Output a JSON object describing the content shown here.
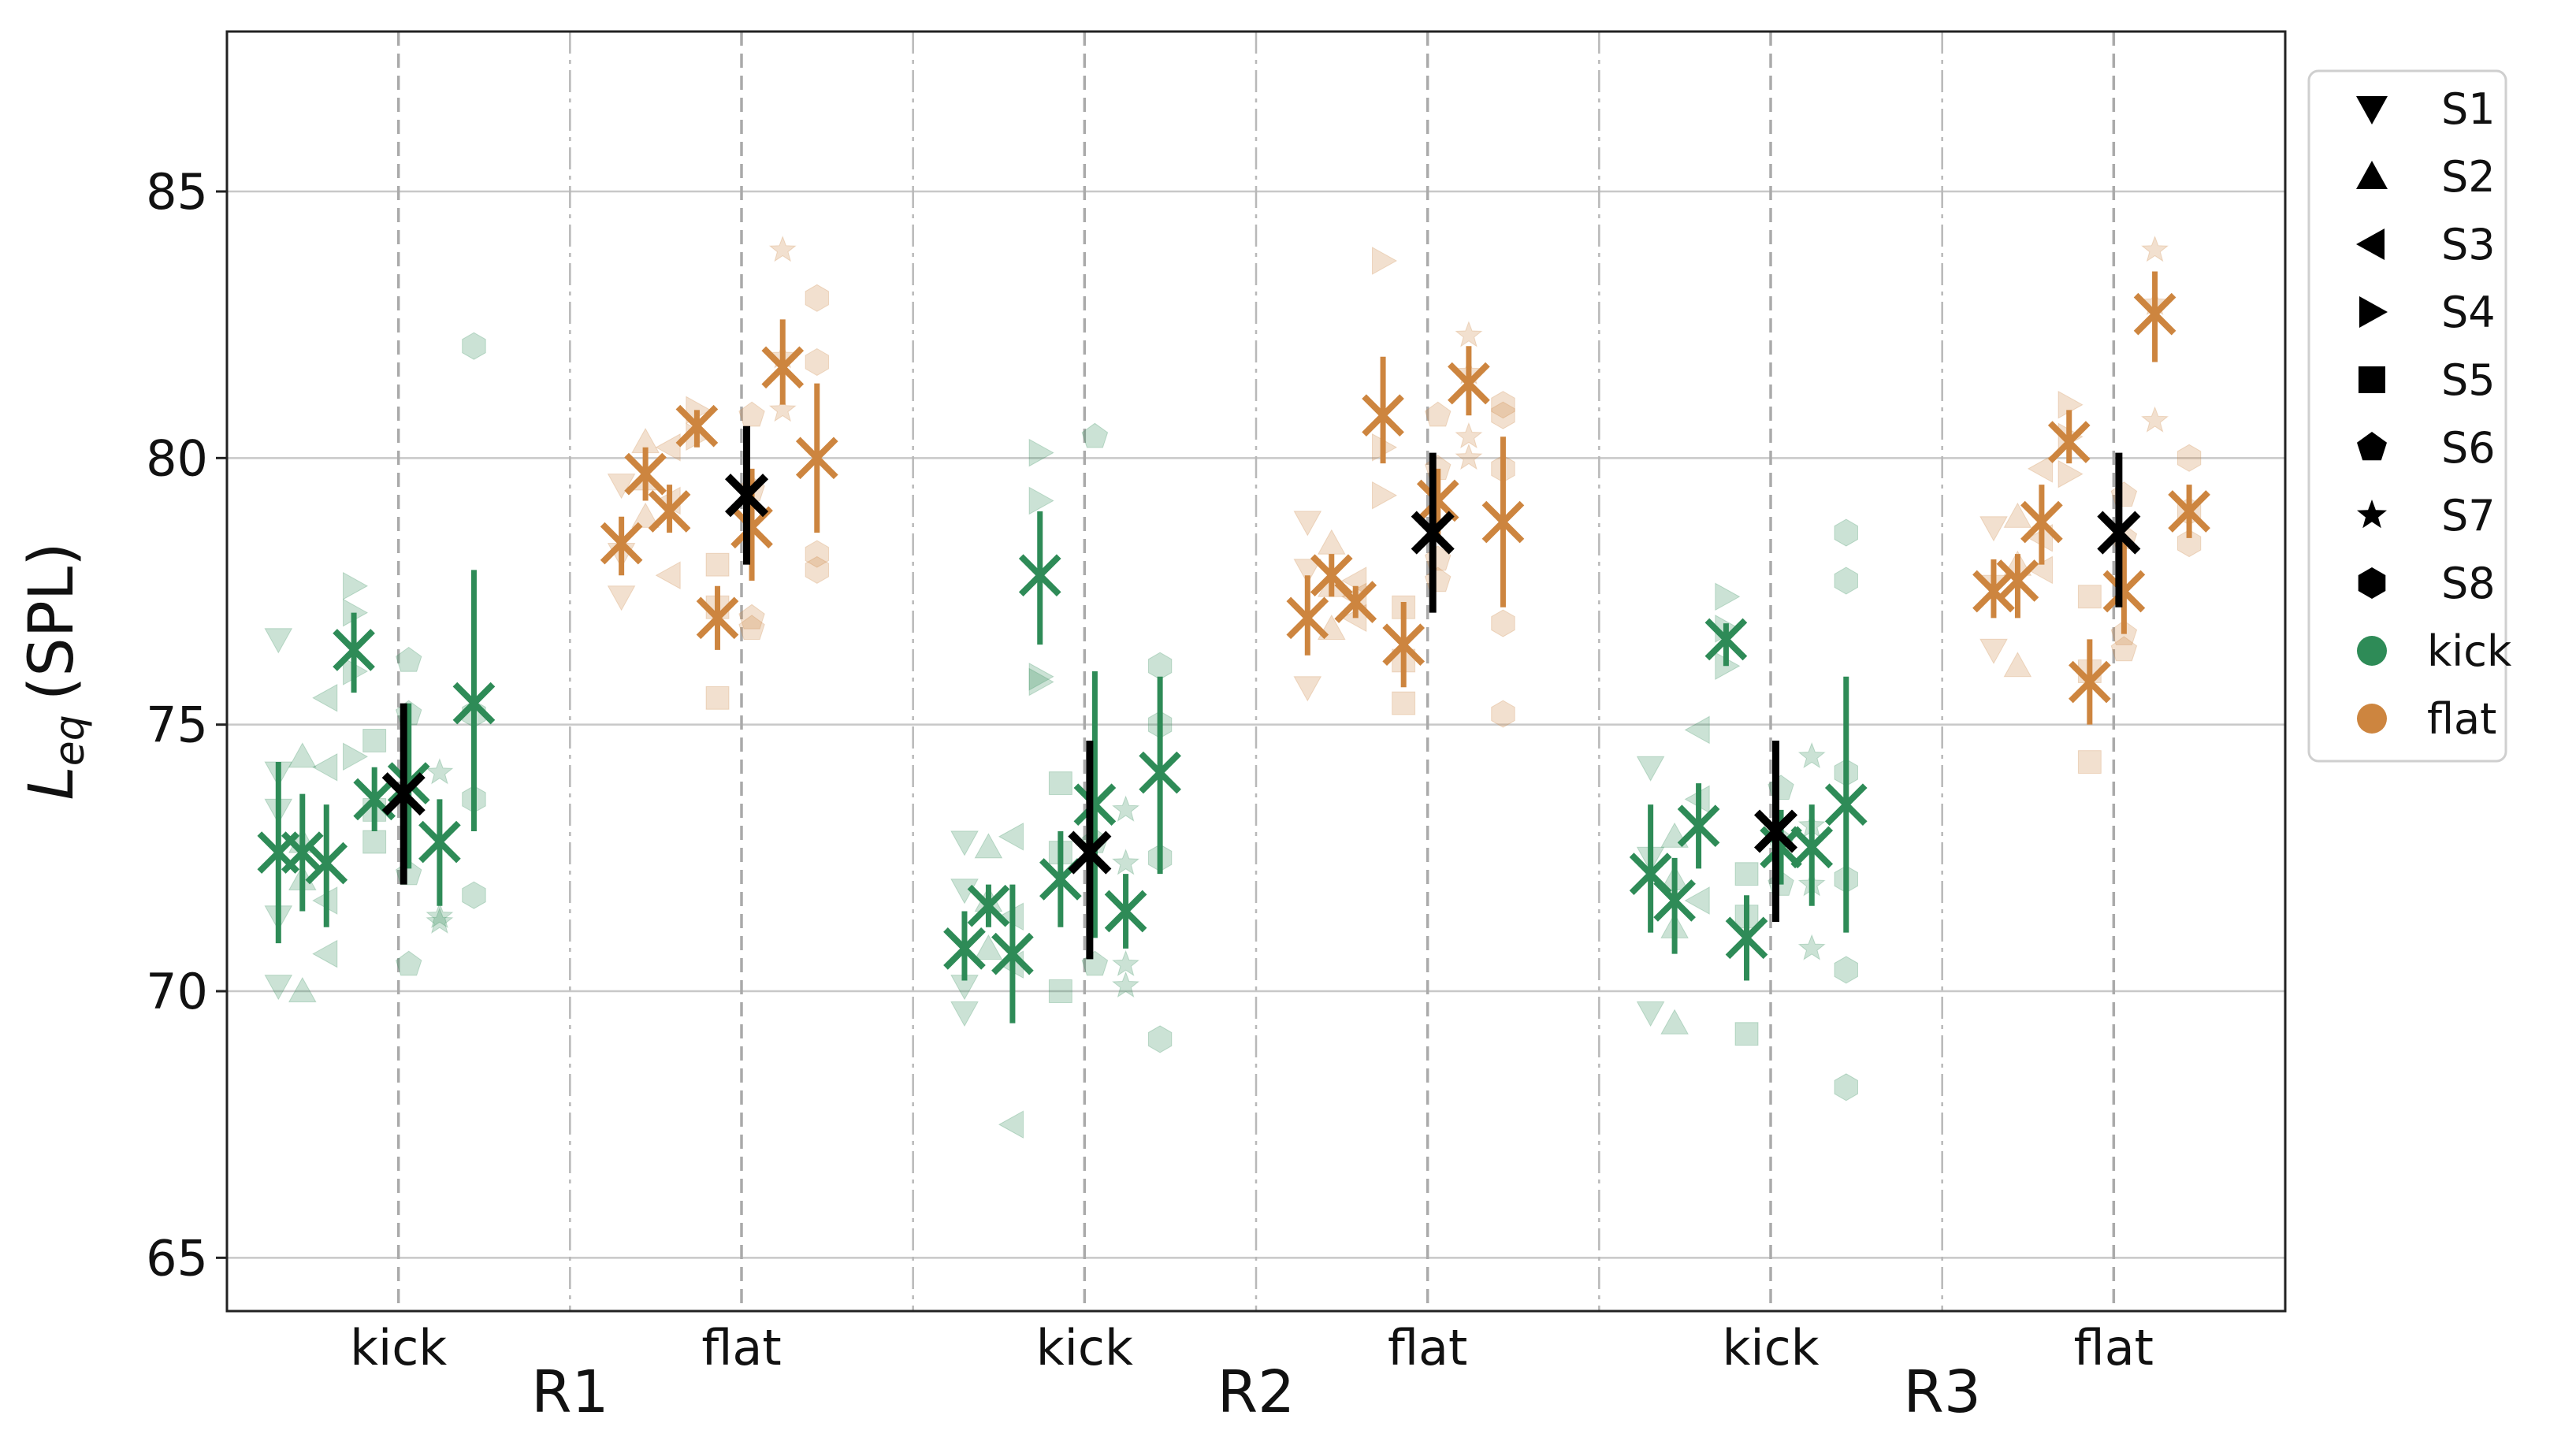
{
  "chart_data": {
    "type": "scatter",
    "ylabel_symbol": "L",
    "ylabel_subscript": "eq",
    "ylabel_unit": "(SPL)",
    "ylim": [
      64,
      88
    ],
    "yticks": [
      65,
      70,
      75,
      80,
      85
    ],
    "grid": true,
    "groups": [
      "R1",
      "R2",
      "R3"
    ],
    "conditions": [
      "kick",
      "flat"
    ],
    "colors": {
      "kick": "#2e8b57",
      "flat": "#cd853f",
      "overall": "#000000"
    },
    "legend": {
      "placement": "right",
      "subjects": [
        {
          "label": "S1",
          "marker": "triangle-down"
        },
        {
          "label": "S2",
          "marker": "triangle-up"
        },
        {
          "label": "S3",
          "marker": "triangle-left"
        },
        {
          "label": "S4",
          "marker": "triangle-right"
        },
        {
          "label": "S5",
          "marker": "square"
        },
        {
          "label": "S6",
          "marker": "pentagon"
        },
        {
          "label": "S7",
          "marker": "star"
        },
        {
          "label": "S8",
          "marker": "hexagon"
        }
      ],
      "conditions": [
        {
          "label": "kick",
          "color": "#2e8b57"
        },
        {
          "label": "flat",
          "color": "#cd853f"
        }
      ]
    },
    "panels": [
      {
        "group": "R1",
        "condition": "kick",
        "overall": {
          "mean": 73.7,
          "lo": 72.0,
          "hi": 75.4
        },
        "subjects": [
          {
            "mean": 72.6,
            "lo": 70.9,
            "hi": 74.3,
            "raw": [
              76.6,
              74.1,
              73.4,
              71.4,
              70.1
            ]
          },
          {
            "mean": 72.6,
            "lo": 71.5,
            "hi": 73.7,
            "raw": [
              74.4,
              72.8,
              72.1,
              70.0
            ]
          },
          {
            "mean": 72.4,
            "lo": 71.2,
            "hi": 73.5,
            "raw": [
              75.5,
              74.2,
              71.7,
              70.7
            ]
          },
          {
            "mean": 76.4,
            "lo": 75.6,
            "hi": 77.1,
            "raw": [
              77.6,
              77.1,
              76.0,
              74.4
            ]
          },
          {
            "mean": 73.6,
            "lo": 73.0,
            "hi": 74.2,
            "raw": [
              74.7,
              73.4,
              72.8
            ]
          },
          {
            "mean": 73.9,
            "lo": 72.3,
            "hi": 75.4,
            "raw": [
              76.2,
              75.2,
              72.2,
              70.5
            ]
          },
          {
            "mean": 72.8,
            "lo": 71.6,
            "hi": 73.6,
            "raw": [
              74.1,
              71.3,
              71.4
            ]
          },
          {
            "mean": 75.4,
            "lo": 73.0,
            "hi": 77.9,
            "raw": [
              82.1,
              75.2,
              73.6,
              71.8
            ]
          }
        ]
      },
      {
        "group": "R1",
        "condition": "flat",
        "overall": {
          "mean": 79.3,
          "lo": 78.0,
          "hi": 80.6
        },
        "subjects": [
          {
            "mean": 78.4,
            "lo": 77.8,
            "hi": 78.9,
            "raw": [
              79.5,
              78.2,
              77.4
            ]
          },
          {
            "mean": 79.7,
            "lo": 79.2,
            "hi": 80.2,
            "raw": [
              80.3,
              79.6,
              78.9
            ]
          },
          {
            "mean": 79.0,
            "lo": 78.6,
            "hi": 79.5,
            "raw": [
              80.2,
              79.2,
              77.8
            ]
          },
          {
            "mean": 80.6,
            "lo": 80.2,
            "hi": 80.9,
            "raw": [
              80.9,
              80.4
            ]
          },
          {
            "mean": 77.0,
            "lo": 76.4,
            "hi": 77.6,
            "raw": [
              78.0,
              77.2,
              75.5
            ]
          },
          {
            "mean": 78.7,
            "lo": 77.7,
            "hi": 79.8,
            "raw": [
              80.8,
              79.4,
              77.0,
              76.8
            ]
          },
          {
            "mean": 81.7,
            "lo": 81.0,
            "hi": 82.6,
            "raw": [
              83.9,
              81.9,
              80.9
            ]
          },
          {
            "mean": 80.0,
            "lo": 78.6,
            "hi": 81.4,
            "raw": [
              83.0,
              81.8,
              78.2,
              77.9
            ]
          }
        ]
      },
      {
        "group": "R2",
        "condition": "kick",
        "overall": {
          "mean": 72.6,
          "lo": 70.6,
          "hi": 74.7
        },
        "subjects": [
          {
            "mean": 70.8,
            "lo": 70.2,
            "hi": 71.5,
            "raw": [
              72.8,
              71.9,
              70.1,
              69.6
            ]
          },
          {
            "mean": 71.6,
            "lo": 71.2,
            "hi": 72.0,
            "raw": [
              72.7,
              71.7,
              70.8
            ]
          },
          {
            "mean": 70.7,
            "lo": 69.4,
            "hi": 72.0,
            "raw": [
              72.9,
              71.4,
              70.5,
              67.5
            ]
          },
          {
            "mean": 77.8,
            "lo": 76.5,
            "hi": 79.0,
            "raw": [
              80.1,
              79.2,
              75.9,
              75.8
            ]
          },
          {
            "mean": 72.1,
            "lo": 71.2,
            "hi": 73.0,
            "raw": [
              73.9,
              72.6,
              70.0
            ]
          },
          {
            "mean": 73.5,
            "lo": 71.0,
            "hi": 76.0,
            "raw": [
              80.4,
              72.8,
              70.5
            ]
          },
          {
            "mean": 71.5,
            "lo": 70.8,
            "hi": 72.2,
            "raw": [
              73.4,
              72.4,
              70.5,
              70.1
            ]
          },
          {
            "mean": 74.1,
            "lo": 72.2,
            "hi": 75.9,
            "raw": [
              76.1,
              75.0,
              72.5,
              69.1
            ]
          }
        ]
      },
      {
        "group": "R2",
        "condition": "flat",
        "overall": {
          "mean": 78.6,
          "lo": 77.1,
          "hi": 80.1
        },
        "subjects": [
          {
            "mean": 77.0,
            "lo": 76.3,
            "hi": 77.8,
            "raw": [
              78.8,
              77.9,
              75.7
            ]
          },
          {
            "mean": 77.8,
            "lo": 77.4,
            "hi": 78.2,
            "raw": [
              78.4,
              77.6,
              76.8
            ]
          },
          {
            "mean": 77.3,
            "lo": 77.0,
            "hi": 77.6,
            "raw": [
              77.7,
              77.4,
              77.0
            ]
          },
          {
            "mean": 80.8,
            "lo": 79.9,
            "hi": 81.9,
            "raw": [
              83.7,
              80.2,
              79.3
            ]
          },
          {
            "mean": 76.5,
            "lo": 75.7,
            "hi": 77.3,
            "raw": [
              77.2,
              76.2,
              75.4
            ]
          },
          {
            "mean": 79.2,
            "lo": 78.5,
            "hi": 79.8,
            "raw": [
              80.8,
              79.8,
              78.1,
              77.7
            ]
          },
          {
            "mean": 81.4,
            "lo": 80.8,
            "hi": 82.1,
            "raw": [
              82.3,
              81.6,
              80.4,
              80.0
            ]
          },
          {
            "mean": 78.8,
            "lo": 77.2,
            "hi": 80.4,
            "raw": [
              81.0,
              80.8,
              79.8,
              76.9,
              75.2
            ]
          }
        ]
      },
      {
        "group": "R3",
        "condition": "kick",
        "overall": {
          "mean": 73.0,
          "lo": 71.3,
          "hi": 74.7
        },
        "subjects": [
          {
            "mean": 72.2,
            "lo": 71.1,
            "hi": 73.5,
            "raw": [
              74.2,
              72.5,
              69.6
            ]
          },
          {
            "mean": 71.7,
            "lo": 70.7,
            "hi": 72.5,
            "raw": [
              72.9,
              72.1,
              71.2,
              69.4
            ]
          },
          {
            "mean": 73.1,
            "lo": 72.3,
            "hi": 73.9,
            "raw": [
              74.9,
              73.6,
              71.7
            ]
          },
          {
            "mean": 76.6,
            "lo": 76.1,
            "hi": 76.9,
            "raw": [
              77.4,
              76.8,
              76.1
            ]
          },
          {
            "mean": 71.0,
            "lo": 70.2,
            "hi": 71.8,
            "raw": [
              72.2,
              71.4,
              69.2
            ]
          },
          {
            "mean": 72.7,
            "lo": 72.0,
            "hi": 73.4,
            "raw": [
              73.8,
              72.8,
              72.0
            ]
          },
          {
            "mean": 72.7,
            "lo": 71.6,
            "hi": 73.5,
            "raw": [
              74.4,
              73.1,
              72.0,
              70.8
            ]
          },
          {
            "mean": 73.5,
            "lo": 71.1,
            "hi": 75.9,
            "raw": [
              78.6,
              77.7,
              74.1,
              72.1,
              70.4,
              68.2
            ]
          }
        ]
      },
      {
        "group": "R3",
        "condition": "flat",
        "overall": {
          "mean": 78.6,
          "lo": 77.2,
          "hi": 80.1
        },
        "subjects": [
          {
            "mean": 77.5,
            "lo": 77.0,
            "hi": 78.1,
            "raw": [
              78.7,
              77.6,
              76.4
            ]
          },
          {
            "mean": 77.7,
            "lo": 77.0,
            "hi": 78.2,
            "raw": [
              78.9,
              78.0,
              76.1
            ]
          },
          {
            "mean": 78.8,
            "lo": 78.0,
            "hi": 79.5,
            "raw": [
              79.8,
              78.5,
              77.9
            ]
          },
          {
            "mean": 80.3,
            "lo": 79.9,
            "hi": 80.9,
            "raw": [
              81.0,
              80.4,
              79.7
            ]
          },
          {
            "mean": 75.8,
            "lo": 75.0,
            "hi": 76.6,
            "raw": [
              77.4,
              76.0,
              74.3
            ]
          },
          {
            "mean": 77.5,
            "lo": 76.7,
            "hi": 78.5,
            "raw": [
              79.3,
              78.5,
              76.7,
              76.4
            ]
          },
          {
            "mean": 82.7,
            "lo": 81.8,
            "hi": 83.5,
            "raw": [
              83.9,
              82.9,
              80.7
            ]
          },
          {
            "mean": 79.0,
            "lo": 78.5,
            "hi": 79.5,
            "raw": [
              80.0,
              79.0,
              78.4
            ]
          }
        ]
      }
    ]
  }
}
